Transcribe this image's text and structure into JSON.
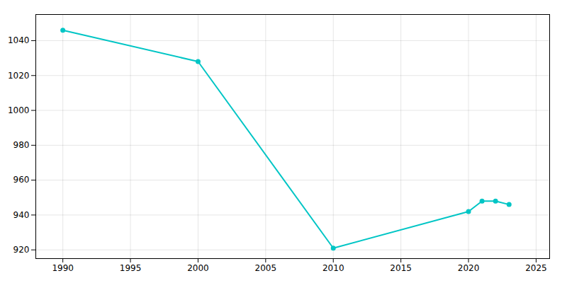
{
  "chart_data": {
    "type": "line",
    "x": [
      1990,
      2000,
      2010,
      2020,
      2021,
      2022,
      2023
    ],
    "values": [
      1046,
      1028,
      921,
      942,
      948,
      948,
      946
    ],
    "color": "#00C5C5",
    "marker": "o",
    "xlim": [
      1988,
      2026
    ],
    "ylim": [
      915,
      1055
    ],
    "xticks": [
      1990,
      1995,
      2000,
      2005,
      2010,
      2015,
      2020,
      2025
    ],
    "yticks": [
      920,
      940,
      960,
      980,
      1000,
      1020,
      1040
    ],
    "grid": true
  }
}
